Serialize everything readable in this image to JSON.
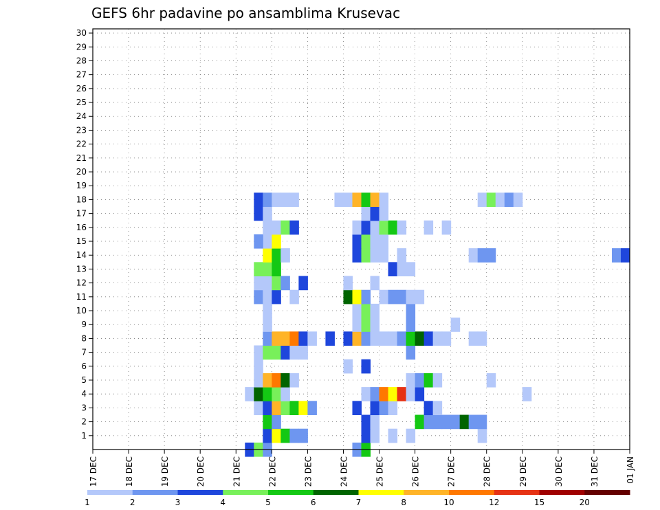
{
  "chart_data": {
    "type": "heatmap",
    "title": "GEFS 6hr padavine po ansamblima Krusevac",
    "xlabel": "",
    "ylabel": "",
    "x_ticks": [
      "17 DEC",
      "18 DEC",
      "19 DEC",
      "20 DEC",
      "21 DEC",
      "22 DEC",
      "23 DEC",
      "24 DEC",
      "25 DEC",
      "26 DEC",
      "27 DEC",
      "28 DEC",
      "29 DEC",
      "30 DEC",
      "31 DEC",
      "01 JAN"
    ],
    "y_ticks": [
      "1",
      "2",
      "3",
      "4",
      "5",
      "6",
      "7",
      "8",
      "9",
      "10",
      "11",
      "12",
      "13",
      "14",
      "15",
      "16",
      "17",
      "18",
      "19",
      "20",
      "21",
      "22",
      "23",
      "24",
      "25",
      "26",
      "27",
      "28",
      "29",
      "30"
    ],
    "x_range_days": [
      0,
      15
    ],
    "y_range_members": [
      0,
      30
    ],
    "cell_width_days": 0.25,
    "grid": true,
    "legend_position": "bottom",
    "legend_labels": [
      "1",
      "2",
      "3",
      "4",
      "5",
      "6",
      "7",
      "8",
      "10",
      "12",
      "15",
      "20"
    ],
    "bin_colors": [
      "#b4c8fa",
      "#6e96f0",
      "#1e46dc",
      "#78f05a",
      "#14c814",
      "#006400",
      "#ffff00",
      "#ffb428",
      "#ff7800",
      "#e63214",
      "#a00000",
      "#640000"
    ],
    "cells": [
      [
        4.25,
        0,
        2
      ],
      [
        4.5,
        0,
        3
      ],
      [
        4.75,
        0,
        1
      ],
      [
        7.25,
        0,
        1
      ],
      [
        7.5,
        0,
        4
      ],
      [
        4.75,
        1,
        2
      ],
      [
        5.0,
        1,
        6
      ],
      [
        5.25,
        1,
        4
      ],
      [
        5.5,
        1,
        1
      ],
      [
        5.75,
        1,
        1
      ],
      [
        7.5,
        1,
        2
      ],
      [
        7.75,
        1,
        0
      ],
      [
        7.5,
        1,
        2
      ],
      [
        7.75,
        1,
        0
      ],
      [
        8.25,
        1,
        0
      ],
      [
        8.75,
        1,
        0
      ],
      [
        10.75,
        1,
        0
      ],
      [
        4.75,
        2,
        4
      ],
      [
        5.0,
        2,
        1
      ],
      [
        7.5,
        2,
        2
      ],
      [
        7.75,
        2,
        0
      ],
      [
        9.0,
        2,
        4
      ],
      [
        9.25,
        2,
        1
      ],
      [
        9.5,
        2,
        1
      ],
      [
        9.75,
        2,
        1
      ],
      [
        10.0,
        2,
        1
      ],
      [
        10.25,
        2,
        5
      ],
      [
        10.5,
        2,
        1
      ],
      [
        10.75,
        2,
        1
      ],
      [
        4.5,
        3,
        0
      ],
      [
        4.75,
        3,
        2
      ],
      [
        5.0,
        3,
        7
      ],
      [
        5.25,
        3,
        3
      ],
      [
        5.5,
        3,
        4
      ],
      [
        5.75,
        3,
        6
      ],
      [
        6.0,
        3,
        1
      ],
      [
        7.25,
        3,
        2
      ],
      [
        7.75,
        3,
        2
      ],
      [
        8.0,
        3,
        1
      ],
      [
        8.25,
        3,
        0
      ],
      [
        9.25,
        3,
        2
      ],
      [
        9.5,
        3,
        0
      ],
      [
        4.25,
        4,
        0
      ],
      [
        4.5,
        4,
        5
      ],
      [
        4.75,
        4,
        4
      ],
      [
        5.0,
        4,
        3
      ],
      [
        5.25,
        4,
        0
      ],
      [
        7.5,
        4,
        0
      ],
      [
        7.75,
        4,
        1
      ],
      [
        8.0,
        4,
        8
      ],
      [
        8.25,
        4,
        6
      ],
      [
        8.5,
        4,
        9
      ],
      [
        8.75,
        4,
        0
      ],
      [
        9.0,
        4,
        2
      ],
      [
        12.0,
        4,
        0
      ],
      [
        4.5,
        5,
        0
      ],
      [
        4.75,
        5,
        7
      ],
      [
        5.0,
        5,
        8
      ],
      [
        5.25,
        5,
        5
      ],
      [
        5.5,
        5,
        0
      ],
      [
        8.75,
        5,
        0
      ],
      [
        9.0,
        5,
        1
      ],
      [
        9.25,
        5,
        4
      ],
      [
        9.5,
        5,
        0
      ],
      [
        11.0,
        5,
        0
      ],
      [
        4.5,
        6,
        0
      ],
      [
        7.0,
        6,
        0
      ],
      [
        7.5,
        6,
        2
      ],
      [
        4.5,
        7,
        0
      ],
      [
        4.75,
        7,
        3
      ],
      [
        5.0,
        7,
        3
      ],
      [
        5.25,
        7,
        2
      ],
      [
        5.5,
        7,
        0
      ],
      [
        5.75,
        7,
        0
      ],
      [
        8.75,
        7,
        1
      ],
      [
        4.75,
        8,
        1
      ],
      [
        5.0,
        8,
        7
      ],
      [
        5.25,
        8,
        7
      ],
      [
        5.5,
        8,
        8
      ],
      [
        5.75,
        8,
        2
      ],
      [
        6.0,
        8,
        0
      ],
      [
        6.5,
        8,
        2
      ],
      [
        7.0,
        8,
        2
      ],
      [
        7.25,
        8,
        7
      ],
      [
        7.5,
        8,
        1
      ],
      [
        7.75,
        8,
        0
      ],
      [
        8.0,
        8,
        0
      ],
      [
        8.25,
        8,
        0
      ],
      [
        8.5,
        8,
        1
      ],
      [
        8.75,
        8,
        4
      ],
      [
        9.0,
        8,
        5
      ],
      [
        9.25,
        8,
        2
      ],
      [
        9.5,
        8,
        0
      ],
      [
        9.75,
        8,
        0
      ],
      [
        10.5,
        8,
        0
      ],
      [
        10.75,
        8,
        0
      ],
      [
        4.75,
        9,
        0
      ],
      [
        7.25,
        9,
        0
      ],
      [
        7.5,
        9,
        3
      ],
      [
        7.75,
        9,
        0
      ],
      [
        8.75,
        9,
        1
      ],
      [
        10.0,
        9,
        0
      ],
      [
        4.75,
        10,
        0
      ],
      [
        7.25,
        10,
        0
      ],
      [
        7.5,
        10,
        3
      ],
      [
        7.75,
        10,
        0
      ],
      [
        8.75,
        10,
        1
      ],
      [
        4.5,
        11,
        1
      ],
      [
        4.75,
        11,
        0
      ],
      [
        5.0,
        11,
        2
      ],
      [
        5.5,
        11,
        0
      ],
      [
        7.0,
        11,
        5
      ],
      [
        7.25,
        11,
        6
      ],
      [
        7.5,
        11,
        1
      ],
      [
        8.0,
        11,
        0
      ],
      [
        8.25,
        11,
        1
      ],
      [
        8.5,
        11,
        1
      ],
      [
        8.75,
        11,
        0
      ],
      [
        9.0,
        11,
        0
      ],
      [
        4.75,
        12,
        0
      ],
      [
        4.5,
        12,
        0
      ],
      [
        5.0,
        12,
        3
      ],
      [
        5.25,
        12,
        1
      ],
      [
        5.75,
        12,
        2
      ],
      [
        7.0,
        12,
        0
      ],
      [
        7.75,
        12,
        0
      ],
      [
        4.5,
        13,
        3
      ],
      [
        4.75,
        13,
        3
      ],
      [
        5.0,
        13,
        4
      ],
      [
        8.25,
        13,
        2
      ],
      [
        8.5,
        13,
        0
      ],
      [
        8.75,
        13,
        0
      ],
      [
        4.75,
        14,
        6
      ],
      [
        5.0,
        14,
        4
      ],
      [
        5.25,
        14,
        0
      ],
      [
        7.25,
        14,
        2
      ],
      [
        7.5,
        14,
        3
      ],
      [
        7.75,
        14,
        0
      ],
      [
        8.0,
        14,
        0
      ],
      [
        8.5,
        14,
        0
      ],
      [
        10.5,
        14,
        0
      ],
      [
        10.75,
        14,
        1
      ],
      [
        11.0,
        14,
        1
      ],
      [
        14.5,
        14,
        1
      ],
      [
        14.75,
        14,
        2
      ],
      [
        4.75,
        15,
        0
      ],
      [
        4.5,
        15,
        1
      ],
      [
        5.0,
        15,
        6
      ],
      [
        7.25,
        15,
        2
      ],
      [
        7.5,
        15,
        3
      ],
      [
        7.75,
        15,
        0
      ],
      [
        8.0,
        15,
        0
      ],
      [
        4.75,
        16,
        0
      ],
      [
        5.0,
        16,
        0
      ],
      [
        5.25,
        16,
        3
      ],
      [
        5.5,
        16,
        2
      ],
      [
        7.25,
        16,
        0
      ],
      [
        7.5,
        16,
        2
      ],
      [
        7.75,
        16,
        0
      ],
      [
        8.0,
        16,
        3
      ],
      [
        8.25,
        16,
        4
      ],
      [
        8.5,
        16,
        0
      ],
      [
        9.25,
        16,
        0
      ],
      [
        9.75,
        16,
        0
      ],
      [
        4.5,
        17,
        2
      ],
      [
        4.75,
        17,
        0
      ],
      [
        7.5,
        17,
        0
      ],
      [
        7.75,
        17,
        2
      ],
      [
        7.75,
        17,
        2
      ],
      [
        8.0,
        17,
        0
      ],
      [
        4.5,
        18,
        2
      ],
      [
        4.75,
        18,
        1
      ],
      [
        5.0,
        18,
        0
      ],
      [
        5.25,
        18,
        0
      ],
      [
        5.5,
        18,
        0
      ],
      [
        6.75,
        18,
        0
      ],
      [
        7.0,
        18,
        0
      ],
      [
        7.25,
        18,
        7
      ],
      [
        7.5,
        18,
        4
      ],
      [
        7.75,
        18,
        7
      ],
      [
        8.0,
        18,
        0
      ],
      [
        10.75,
        18,
        0
      ],
      [
        11.0,
        18,
        3
      ],
      [
        11.25,
        18,
        0
      ],
      [
        11.5,
        18,
        1
      ],
      [
        11.75,
        18,
        0
      ]
    ]
  }
}
